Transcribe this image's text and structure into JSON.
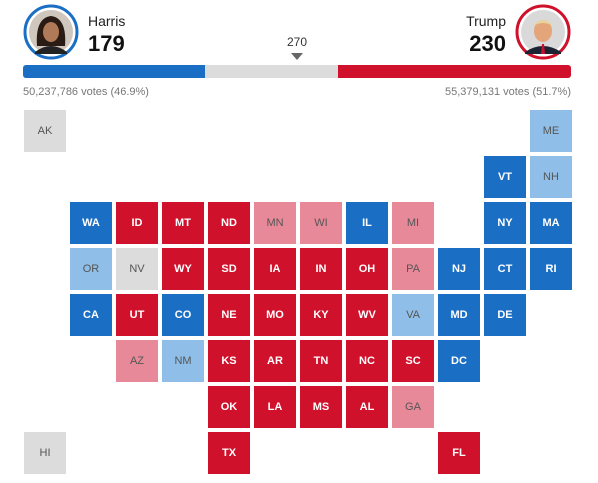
{
  "header": {
    "harris": {
      "name": "Harris",
      "electoral": 179,
      "votes": "50,237,786 votes (46.9%)",
      "color": "#1a6fc4"
    },
    "trump": {
      "name": "Trump",
      "electoral": 230,
      "votes": "55,379,131 votes (51.7%)",
      "color": "#d0112b"
    },
    "threshold": 270
  },
  "map": {
    "rows": [
      [
        {
          "label": "AK",
          "color": "#dcdcdc"
        },
        null,
        null,
        null,
        null,
        null,
        null,
        null,
        null,
        null,
        null,
        {
          "label": "ME",
          "color": "#8fbfe8"
        }
      ],
      [
        null,
        null,
        null,
        null,
        null,
        null,
        null,
        null,
        null,
        null,
        {
          "label": "VT",
          "color": "#1a6fc4"
        },
        {
          "label": "NH",
          "color": "#8fbfe8"
        }
      ],
      [
        null,
        {
          "label": "WA",
          "color": "#1a6fc4"
        },
        {
          "label": "ID",
          "color": "#d0112b"
        },
        {
          "label": "MT",
          "color": "#d0112b"
        },
        {
          "label": "ND",
          "color": "#d0112b"
        },
        {
          "label": "MN",
          "color": "#e8899a"
        },
        {
          "label": "WI",
          "color": "#e8899a"
        },
        {
          "label": "IL",
          "color": "#1a6fc4"
        },
        {
          "label": "MI",
          "color": "#e8899a"
        },
        null,
        {
          "label": "NY",
          "color": "#1a6fc4"
        },
        {
          "label": "MA",
          "color": "#1a6fc4"
        }
      ],
      [
        null,
        {
          "label": "OR",
          "color": "#8fbfe8"
        },
        {
          "label": "NV",
          "color": "#dcdcdc"
        },
        {
          "label": "WY",
          "color": "#d0112b"
        },
        {
          "label": "SD",
          "color": "#d0112b"
        },
        {
          "label": "IA",
          "color": "#d0112b"
        },
        {
          "label": "IN",
          "color": "#d0112b"
        },
        {
          "label": "OH",
          "color": "#d0112b"
        },
        {
          "label": "PA",
          "color": "#e8899a"
        },
        {
          "label": "NJ",
          "color": "#1a6fc4"
        },
        {
          "label": "CT",
          "color": "#1a6fc4"
        },
        {
          "label": "RI",
          "color": "#1a6fc4"
        }
      ],
      [
        null,
        {
          "label": "CA",
          "color": "#1a6fc4"
        },
        {
          "label": "UT",
          "color": "#d0112b"
        },
        {
          "label": "CO",
          "color": "#1a6fc4"
        },
        {
          "label": "NE",
          "color": "#d0112b"
        },
        {
          "label": "MO",
          "color": "#d0112b"
        },
        {
          "label": "KY",
          "color": "#d0112b"
        },
        {
          "label": "WV",
          "color": "#d0112b"
        },
        {
          "label": "VA",
          "color": "#8fbfe8"
        },
        {
          "label": "MD",
          "color": "#1a6fc4"
        },
        {
          "label": "DE",
          "color": "#1a6fc4"
        },
        null
      ],
      [
        null,
        null,
        {
          "label": "AZ",
          "color": "#e8899a"
        },
        {
          "label": "NM",
          "color": "#8fbfe8"
        },
        {
          "label": "KS",
          "color": "#d0112b"
        },
        {
          "label": "AR",
          "color": "#d0112b"
        },
        {
          "label": "TN",
          "color": "#d0112b"
        },
        {
          "label": "NC",
          "color": "#d0112b"
        },
        {
          "label": "SC",
          "color": "#d0112b"
        },
        {
          "label": "DC",
          "color": "#1a6fc4"
        },
        null,
        null
      ],
      [
        null,
        null,
        null,
        null,
        {
          "label": "OK",
          "color": "#d0112b"
        },
        {
          "label": "LA",
          "color": "#d0112b"
        },
        {
          "label": "MS",
          "color": "#d0112b"
        },
        {
          "label": "AL",
          "color": "#d0112b"
        },
        {
          "label": "GA",
          "color": "#e8899a"
        },
        null,
        null,
        null
      ],
      [
        {
          "label": "HI",
          "color": "#dcdcdc"
        },
        null,
        null,
        null,
        {
          "label": "TX",
          "color": "#d0112b"
        },
        null,
        null,
        null,
        null,
        {
          "label": "FL",
          "color": "#d0112b"
        },
        null,
        null
      ]
    ]
  }
}
